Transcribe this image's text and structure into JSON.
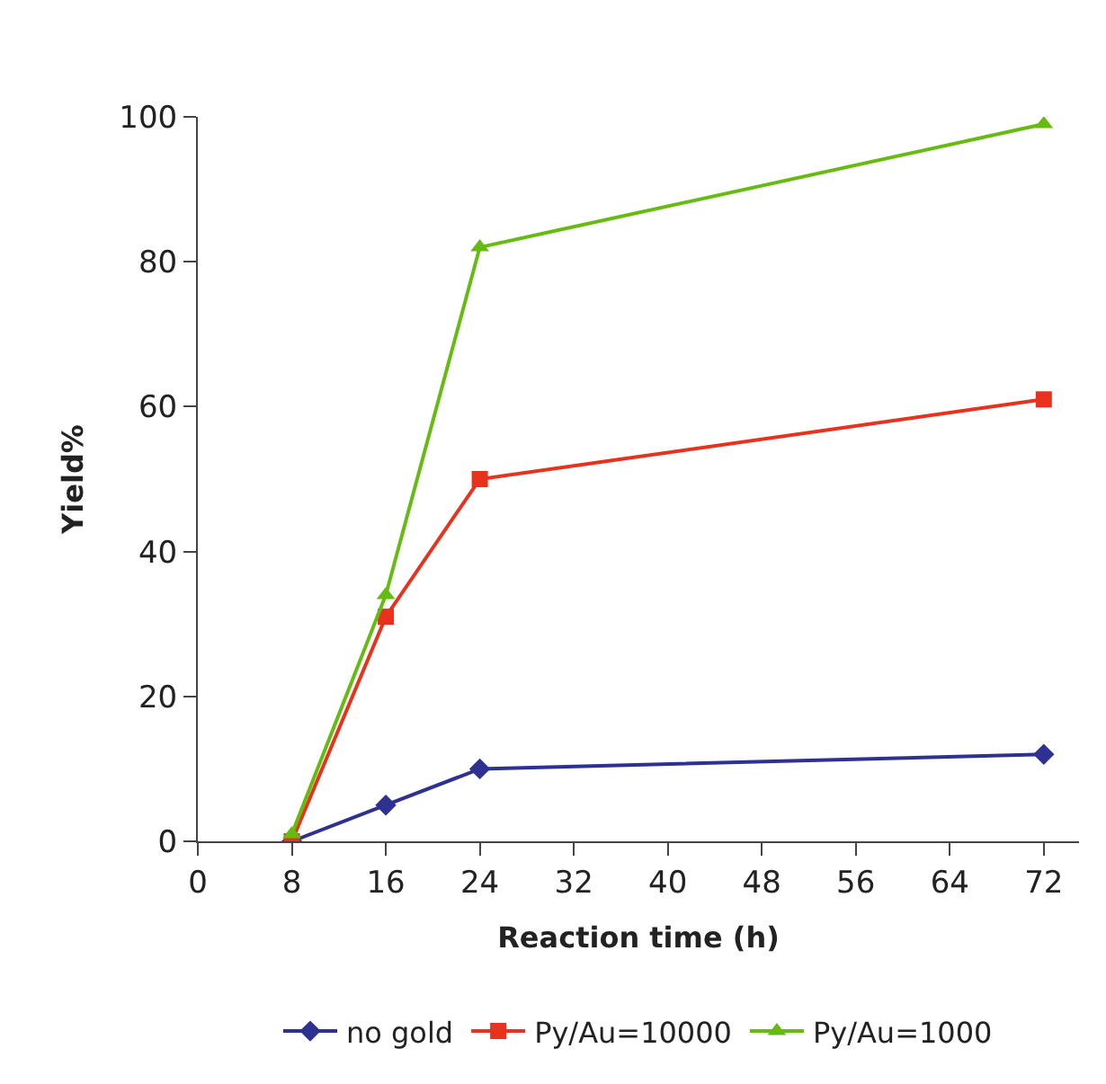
{
  "chart_data": {
    "type": "line",
    "xlabel": "Reaction time (h)",
    "ylabel": "Yield%",
    "x": [
      8,
      16,
      24,
      72
    ],
    "series": [
      {
        "name": "no gold",
        "color": "#2e3192",
        "marker": "diamond",
        "values": [
          0,
          5,
          10,
          12
        ]
      },
      {
        "name": "Py/Au=10000",
        "color": "#e8321e",
        "marker": "square",
        "values": [
          0,
          31,
          50,
          61
        ]
      },
      {
        "name": "Py/Au=1000",
        "color": "#66bb10",
        "marker": "triangle",
        "values": [
          1,
          34,
          82,
          99
        ]
      }
    ],
    "xlim": [
      0,
      75
    ],
    "xticks": [
      0,
      8,
      16,
      24,
      32,
      40,
      48,
      56,
      64,
      72
    ],
    "ylim": [
      0,
      100
    ],
    "yticks": [
      0,
      20,
      40,
      60,
      80,
      100
    ],
    "grid": false,
    "legend": "bottom",
    "line_style": "solid"
  }
}
